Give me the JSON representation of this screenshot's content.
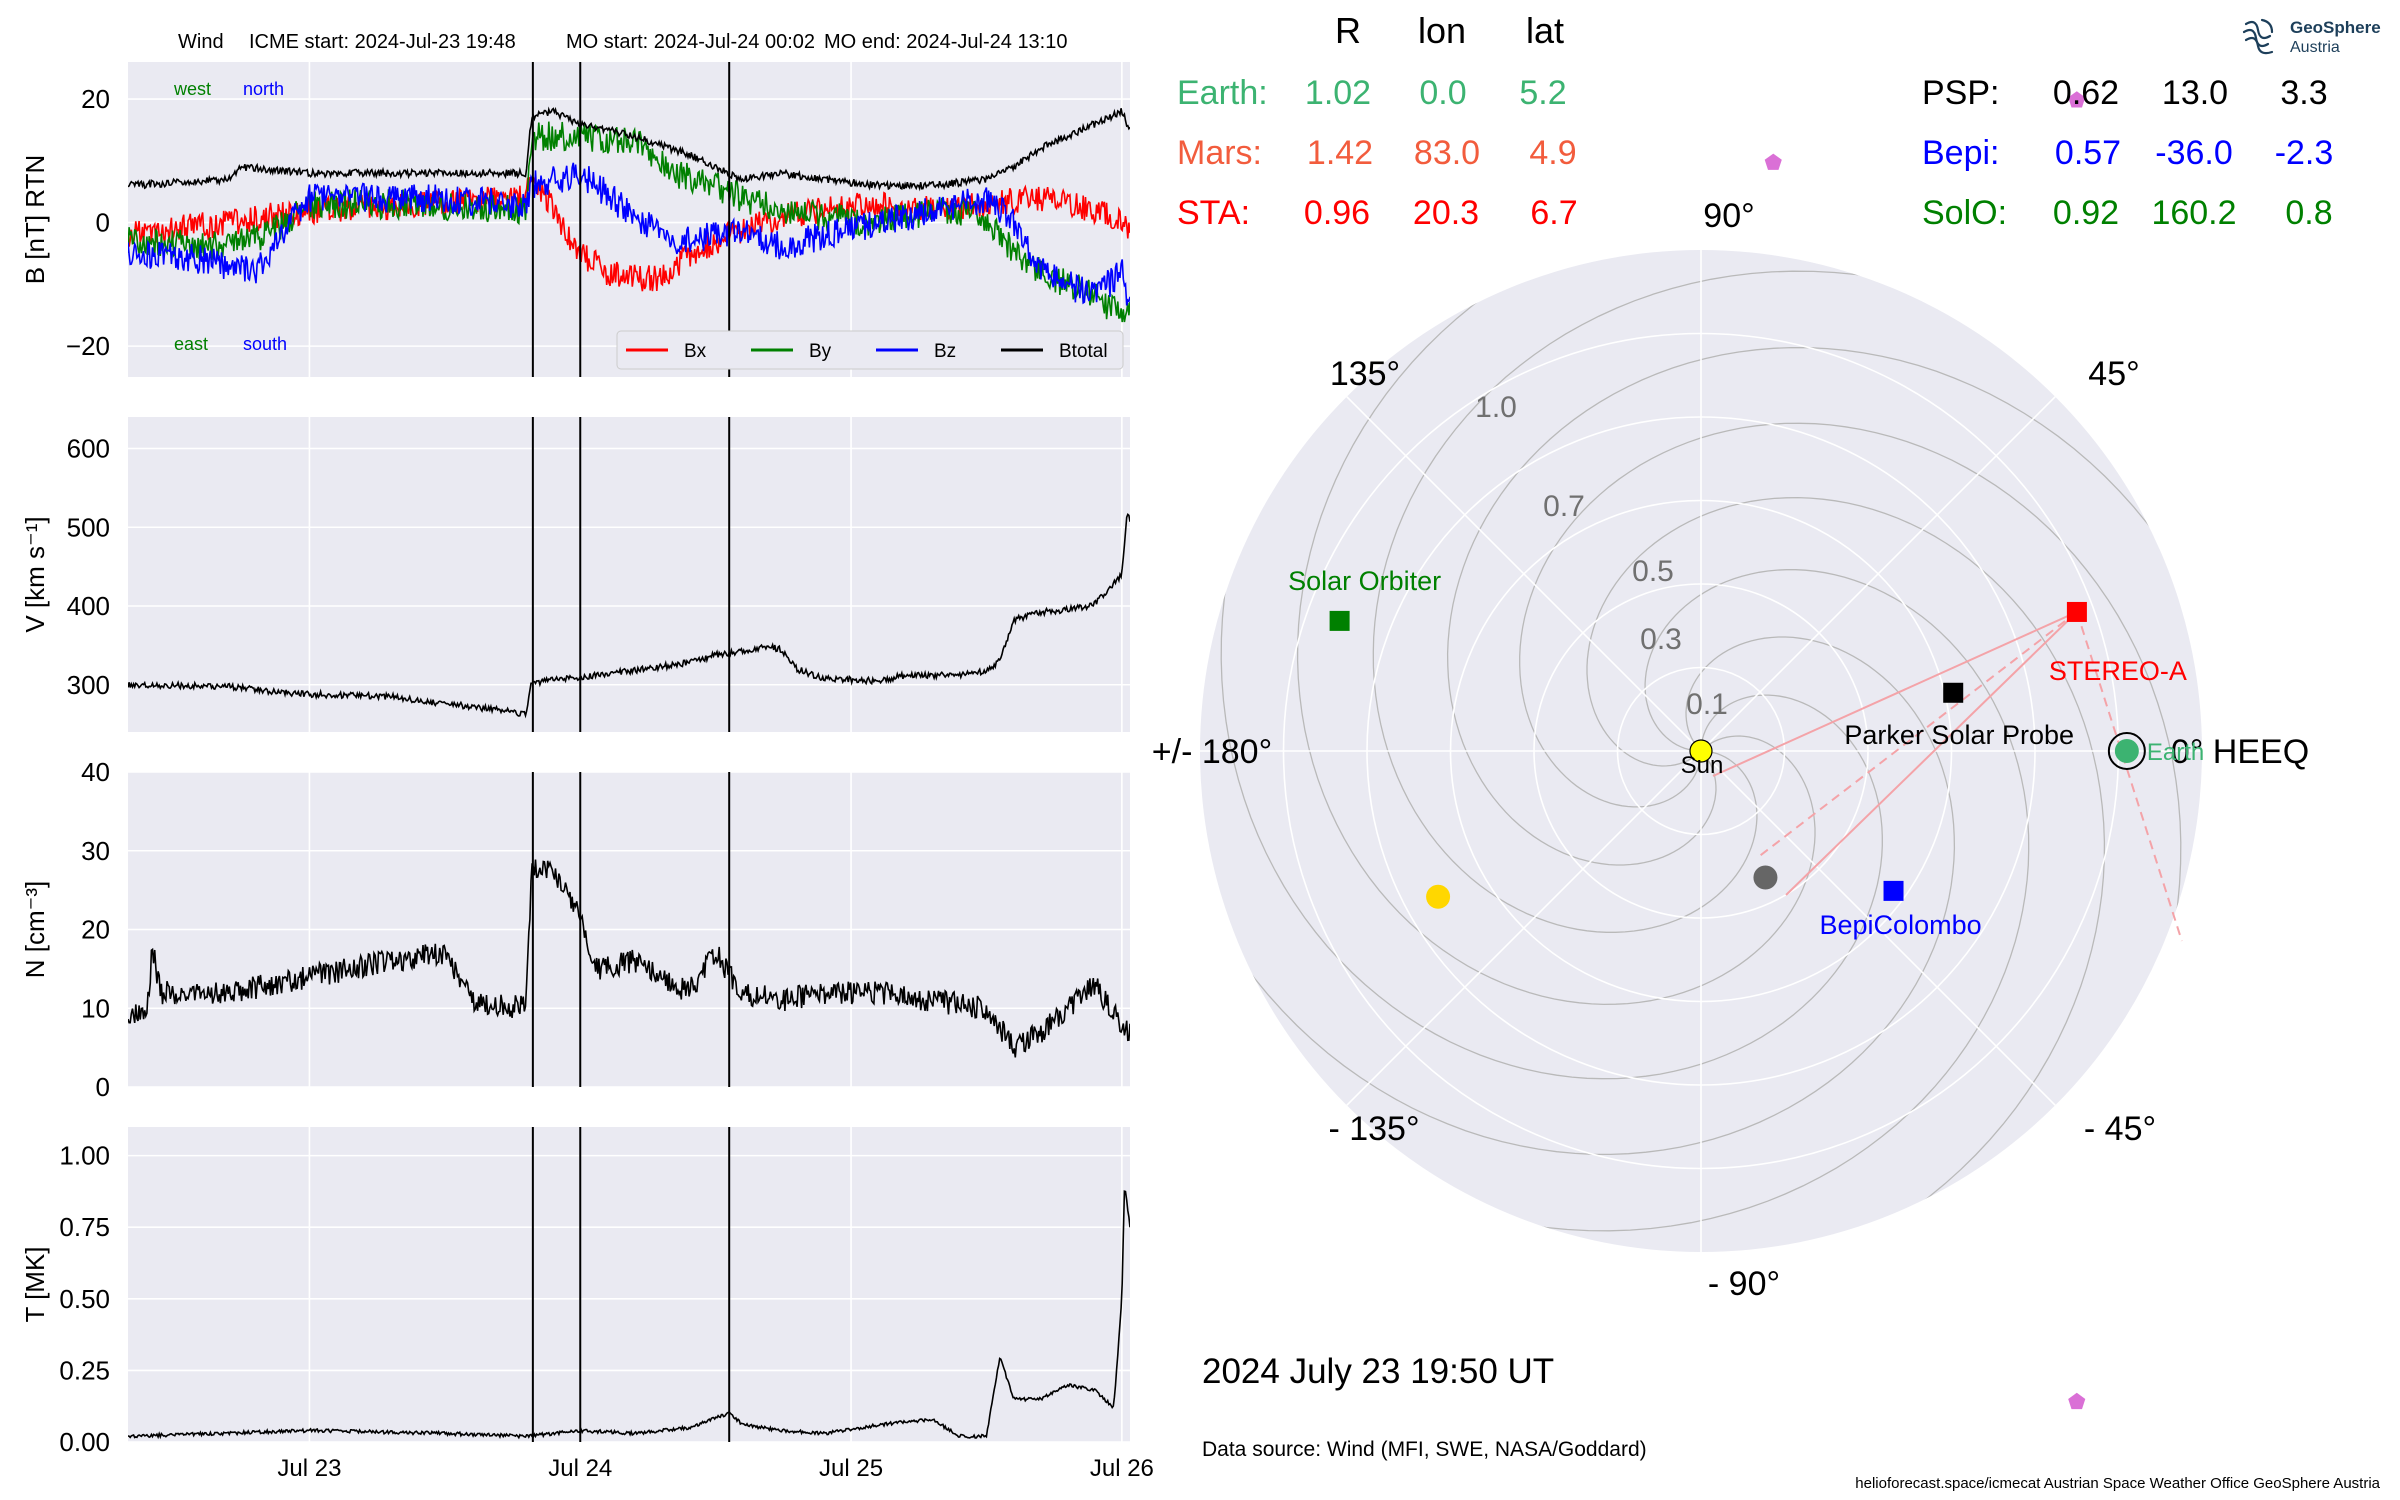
{
  "header": {
    "spacecraft": "Wind",
    "icme_start": "ICME start: 2024-Jul-23 19:48",
    "mo_start": "MO start: 2024-Jul-24 00:02",
    "mo_end": "MO end: 2024-Jul-24 13:10"
  },
  "logo": {
    "name": "GeoSphere",
    "sub": "Austria",
    "icon": "geosphere-logo-icon"
  },
  "position_table": {
    "columns": [
      "R",
      "lon",
      "lat"
    ],
    "left_rows": [
      {
        "label": "Earth:",
        "r": "1.02",
        "lon": "0.0",
        "lat": "5.2",
        "color": "#3cb371"
      },
      {
        "label": "Mars:",
        "r": "1.42",
        "lon": "83.0",
        "lat": "4.9",
        "color": "#f25c3d"
      },
      {
        "label": "STA:",
        "r": "0.96",
        "lon": "20.3",
        "lat": "6.7",
        "color": "#ff0000"
      }
    ],
    "right_rows": [
      {
        "label": "PSP:",
        "r": "0.62",
        "lon": "13.0",
        "lat": "3.3",
        "color": "#000000"
      },
      {
        "label": "Bepi:",
        "r": "0.57",
        "lon": "-36.0",
        "lat": "-2.3",
        "color": "#0000ff"
      },
      {
        "label": "SolO:",
        "r": "0.92",
        "lon": "160.2",
        "lat": "0.8",
        "color": "#008000"
      }
    ]
  },
  "footer": {
    "date": "2024 July 23  19:50 UT",
    "source": "Data source: Wind (MFI, SWE, NASA/Goddard)",
    "credits": "helioforecast.space/icmecat   Austrian Space Weather Office   GeoSphere Austria"
  },
  "chart_data": [
    {
      "type": "line",
      "panel": "magnetic-field",
      "ylabel": "B [nT] RTN",
      "ylim": [
        -25,
        26
      ],
      "yticks": [
        {
          "v": -20,
          "t": "−20"
        },
        {
          "v": 0,
          "t": "0"
        },
        {
          "v": 20,
          "t": "20"
        }
      ],
      "annotations": [
        {
          "text": "west",
          "color": "#008000",
          "pos": "upper-left"
        },
        {
          "text": "north",
          "color": "#0000ff",
          "pos": "upper-left"
        },
        {
          "text": "east",
          "color": "#008000",
          "pos": "lower-left"
        },
        {
          "text": "south",
          "color": "#0000ff",
          "pos": "lower-left"
        }
      ],
      "legend_position": "lower-right",
      "series": [
        {
          "name": "Bx",
          "color": "#ff0000",
          "noise": 2.2,
          "x": [
            -0.67,
            -0.3,
            0,
            0.4,
            0.8,
            0.82,
            0.9,
            1.0,
            1.1,
            1.2,
            1.3,
            1.35,
            1.5,
            1.6,
            1.7,
            1.74,
            1.9,
            2.1,
            2.3,
            2.5,
            2.7,
            2.8,
            2.9,
            3.0,
            3.03
          ],
          "y": [
            -2,
            0,
            2,
            3,
            4,
            8,
            2,
            -5,
            -8,
            -9,
            -9,
            -7,
            -3,
            -1,
            0,
            1,
            2,
            3,
            2,
            3,
            4,
            3,
            2,
            0,
            -2
          ]
        },
        {
          "name": "By",
          "color": "#008000",
          "noise": 2.4,
          "x": [
            -0.67,
            -0.3,
            -0.15,
            0,
            0.4,
            0.8,
            0.82,
            1.0,
            1.2,
            1.35,
            1.5,
            1.6,
            1.74,
            1.9,
            2.1,
            2.3,
            2.5,
            2.6,
            2.7,
            2.8,
            2.9,
            3.0,
            3.03
          ],
          "y": [
            -3,
            -4,
            -2,
            3,
            3,
            2,
            14,
            14,
            13,
            8,
            6,
            4,
            2,
            1,
            0,
            2,
            1,
            -5,
            -8,
            -10,
            -12,
            -15,
            -13
          ]
        },
        {
          "name": "Bz",
          "color": "#0000ff",
          "noise": 2.4,
          "x": [
            -0.67,
            -0.4,
            -0.2,
            0,
            0.4,
            0.8,
            0.82,
            1.0,
            1.2,
            1.35,
            1.5,
            1.6,
            1.74,
            1.9,
            2.1,
            2.3,
            2.5,
            2.6,
            2.7,
            2.8,
            2.9,
            3.0,
            3.03
          ],
          "y": [
            -5,
            -6,
            -8,
            4,
            4,
            3,
            6,
            8,
            1,
            -3,
            -2,
            -1,
            -4,
            -2,
            0,
            2,
            4,
            0,
            -8,
            -10,
            -12,
            -8,
            -14
          ]
        },
        {
          "name": "Btotal",
          "color": "#000000",
          "noise": 0.6,
          "x": [
            -0.67,
            -0.3,
            -0.25,
            0,
            0.3,
            0.8,
            0.82,
            0.9,
            1.0,
            1.2,
            1.4,
            1.6,
            1.74,
            1.9,
            2.1,
            2.3,
            2.5,
            2.6,
            2.7,
            2.8,
            2.9,
            3.0,
            3.03
          ],
          "y": [
            6,
            7,
            9,
            8,
            8,
            8,
            17,
            18,
            16,
            14,
            11,
            7,
            8,
            7,
            6,
            6,
            7,
            9,
            12,
            14,
            16,
            18,
            15
          ]
        }
      ]
    },
    {
      "type": "line",
      "panel": "speed",
      "ylabel": "V [km s⁻¹]",
      "ylim": [
        240,
        640
      ],
      "yticks": [
        {
          "v": 300,
          "t": "300"
        },
        {
          "v": 400,
          "t": "400"
        },
        {
          "v": 500,
          "t": "500"
        },
        {
          "v": 600,
          "t": "600"
        }
      ],
      "series": [
        {
          "name": "V",
          "color": "#000000",
          "noise": 4,
          "x": [
            -0.67,
            -0.3,
            -0.1,
            0,
            0.3,
            0.5,
            0.7,
            0.8,
            0.82,
            1.0,
            1.2,
            1.4,
            1.5,
            1.7,
            1.74,
            1.8,
            1.9,
            2.1,
            2.2,
            2.4,
            2.5,
            2.55,
            2.6,
            2.7,
            2.8,
            2.9,
            3.0,
            3.02,
            3.03
          ],
          "y": [
            300,
            298,
            290,
            288,
            285,
            276,
            268,
            262,
            302,
            310,
            318,
            328,
            338,
            348,
            345,
            320,
            308,
            305,
            312,
            312,
            318,
            330,
            382,
            392,
            395,
            402,
            440,
            520,
            505
          ]
        }
      ]
    },
    {
      "type": "line",
      "panel": "density",
      "ylabel": "N [cm⁻³]",
      "ylim": [
        0,
        40
      ],
      "yticks": [
        {
          "v": 0,
          "t": "0"
        },
        {
          "v": 10,
          "t": "10"
        },
        {
          "v": 20,
          "t": "20"
        },
        {
          "v": 30,
          "t": "30"
        },
        {
          "v": 40,
          "t": "40"
        }
      ],
      "series": [
        {
          "name": "N",
          "color": "#000000",
          "noise": 1.5,
          "x": [
            -0.67,
            -0.6,
            -0.58,
            -0.55,
            -0.3,
            0,
            0.3,
            0.5,
            0.6,
            0.8,
            0.82,
            0.9,
            1.0,
            1.05,
            1.2,
            1.4,
            1.5,
            1.6,
            1.74,
            1.9,
            2.1,
            2.3,
            2.5,
            2.6,
            2.7,
            2.8,
            2.9,
            3.0,
            3.03
          ],
          "y": [
            9,
            9,
            18,
            12,
            12,
            14,
            16,
            17,
            11,
            10,
            28,
            27,
            22,
            15,
            16,
            12,
            17,
            12,
            11,
            12,
            12,
            11,
            10,
            5,
            7,
            10,
            13,
            8,
            7
          ]
        }
      ]
    },
    {
      "type": "line",
      "panel": "temperature",
      "ylabel": "T [MK]",
      "ylim": [
        0,
        1.1
      ],
      "yticks": [
        {
          "v": 0,
          "t": "0.00"
        },
        {
          "v": 0.25,
          "t": "0.25"
        },
        {
          "v": 0.5,
          "t": "0.50"
        },
        {
          "v": 0.75,
          "t": "0.75"
        },
        {
          "v": 1.0,
          "t": "1.00"
        }
      ],
      "xticks": [
        {
          "v": 0,
          "t": "Jul 23"
        },
        {
          "v": 1,
          "t": "Jul 24"
        },
        {
          "v": 2,
          "t": "Jul 25"
        },
        {
          "v": 3,
          "t": "Jul 26"
        }
      ],
      "xlim": [
        -0.67,
        3.03
      ],
      "series": [
        {
          "name": "T",
          "color": "#000000",
          "noise": 0.006,
          "x": [
            -0.67,
            0,
            0.5,
            0.8,
            1.0,
            1.2,
            1.4,
            1.55,
            1.6,
            1.74,
            1.9,
            2.1,
            2.3,
            2.4,
            2.5,
            2.55,
            2.6,
            2.7,
            2.8,
            2.9,
            2.97,
            3.0,
            3.01,
            3.03
          ],
          "y": [
            0.02,
            0.04,
            0.03,
            0.02,
            0.04,
            0.03,
            0.05,
            0.1,
            0.06,
            0.04,
            0.03,
            0.06,
            0.08,
            0.02,
            0.02,
            0.3,
            0.15,
            0.15,
            0.2,
            0.18,
            0.12,
            0.5,
            0.9,
            0.75
          ]
        }
      ]
    },
    {
      "type": "scatter",
      "panel": "heliosphere-polar",
      "projection": "polar",
      "rlim": [
        0,
        1.2
      ],
      "rtick_labels": [
        {
          "r": 0.1,
          "t": "0.1"
        },
        {
          "r": 0.3,
          "t": "0.3"
        },
        {
          "r": 0.5,
          "t": "0.5"
        },
        {
          "r": 0.7,
          "t": "0.7"
        },
        {
          "r": 1.0,
          "t": "1.0"
        }
      ],
      "angle_labels": [
        {
          "deg": 0,
          "t": "0° HEEQ"
        },
        {
          "deg": 45,
          "t": "45°"
        },
        {
          "deg": 90,
          "t": "90°"
        },
        {
          "deg": 135,
          "t": "135°"
        },
        {
          "deg": 180,
          "t": "+/- 180°"
        },
        {
          "deg": -135,
          "t": "- 135°"
        },
        {
          "deg": -90,
          "t": "- 90°"
        },
        {
          "deg": -45,
          "t": "- 45°"
        }
      ],
      "points": [
        {
          "name": "Sun",
          "label": "Sun",
          "r": 0,
          "lon": 0,
          "marker": "circle",
          "color": "#ffff00"
        },
        {
          "name": "Earth",
          "label": "Earth",
          "r": 1.02,
          "lon": 0.0,
          "marker": "circle",
          "color": "#3cb371"
        },
        {
          "name": "STEREO-A",
          "label": "STEREO-A",
          "r": 0.96,
          "lon": 20.3,
          "marker": "square",
          "color": "#ff0000"
        },
        {
          "name": "Parker Solar Probe",
          "label": "Parker Solar Probe",
          "r": 0.62,
          "lon": 13.0,
          "marker": "square",
          "color": "#000000"
        },
        {
          "name": "BepiColombo",
          "label": "BepiColombo",
          "r": 0.57,
          "lon": -36.0,
          "marker": "square",
          "color": "#0000ff"
        },
        {
          "name": "Solar Orbiter",
          "label": "Solar Orbiter",
          "r": 0.92,
          "lon": 160.2,
          "marker": "square",
          "color": "#008000"
        },
        {
          "name": "Mercury",
          "label": "",
          "r": 0.34,
          "lon": -63,
          "marker": "circle",
          "color": "#666666"
        },
        {
          "name": "Venus",
          "label": "",
          "r": 0.72,
          "lon": -151,
          "marker": "circle",
          "color": "#ffd700"
        },
        {
          "name": "Mars",
          "label": "",
          "r": 1.42,
          "lon": 83.0,
          "marker": "pentagon",
          "color": "#da70d6"
        },
        {
          "name": "Jupiter",
          "label": "",
          "r": 1.8,
          "lon": 60,
          "marker": "pentagon",
          "color": "#da70d6"
        },
        {
          "name": "Saturn",
          "label": "",
          "r": 1.8,
          "lon": -60,
          "marker": "pentagon",
          "color": "#da70d6"
        }
      ]
    }
  ]
}
